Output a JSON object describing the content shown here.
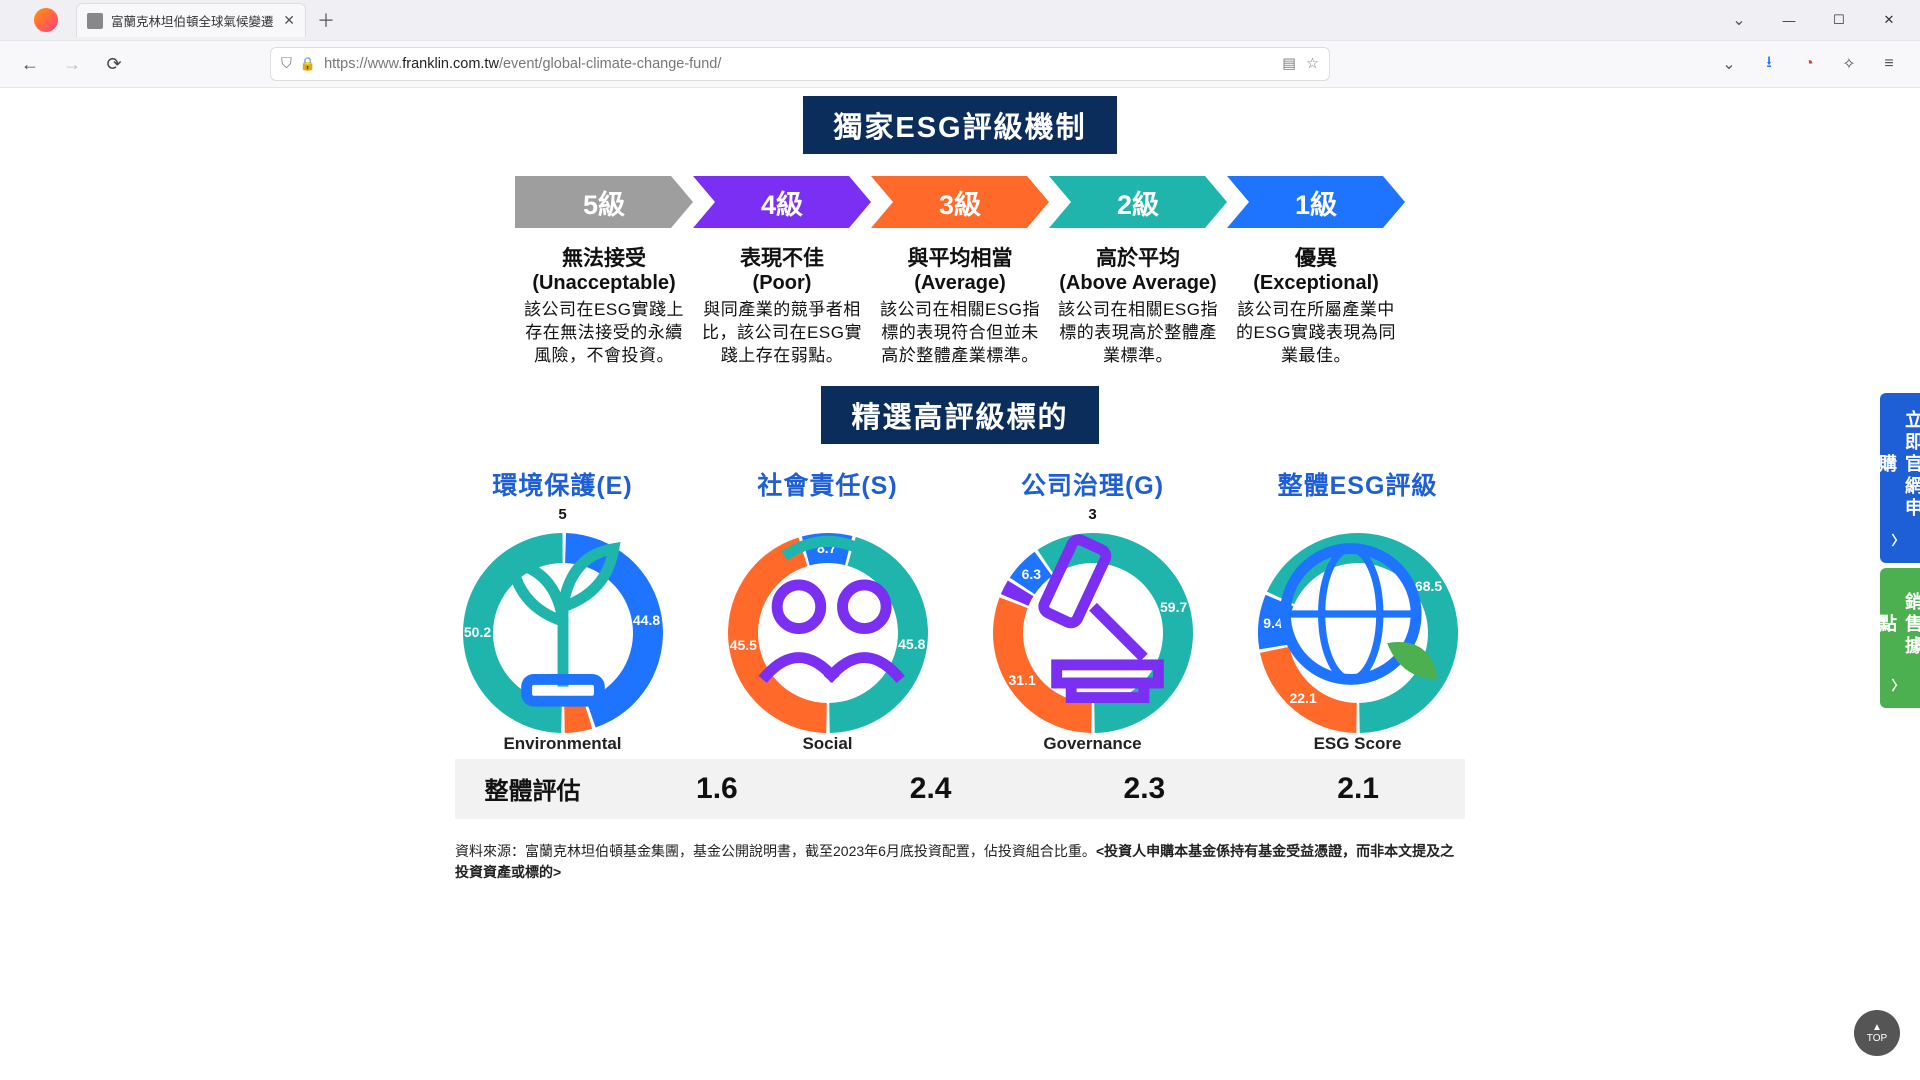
{
  "browser": {
    "tab_title": "富蘭克林坦伯頓全球氣候變遷",
    "url_prefix": "https://www.",
    "url_domain": "franklin.com.tw",
    "url_path": "/event/global-climate-change-fund/"
  },
  "banner1": "獨家ESG評級機制",
  "banner2": "精選高評級標的",
  "arrow_colors": [
    "#9e9e9e",
    "#7b2ff2",
    "#ff6a2b",
    "#1fb5ad",
    "#1e74ff"
  ],
  "levels": [
    {
      "grade": "5級",
      "title": "無法接受",
      "en": "(Unacceptable)",
      "desc": "該公司在ESG實踐上存在無法接受的永續風險，不會投資。"
    },
    {
      "grade": "4級",
      "title": "表現不佳",
      "en": "(Poor)",
      "desc": "與同產業的競爭者相比，該公司在ESG實踐上存在弱點。"
    },
    {
      "grade": "3級",
      "title": "與平均相當",
      "en": "(Average)",
      "desc": "該公司在相關ESG指標的表現符合但並未高於整體產業標準。"
    },
    {
      "grade": "2級",
      "title": "高於平均",
      "en": "(Above Average)",
      "desc": "該公司在相關ESG指標的表現高於整體產業標準。"
    },
    {
      "grade": "1級",
      "title": "優異",
      "en": "(Exceptional)",
      "desc": "該公司在所屬產業中的ESG實踐表現為同業最佳。"
    }
  ],
  "esg": [
    {
      "title": "環境保護(E)",
      "center": "Environmental",
      "top_label": "5",
      "segments": [
        {
          "value": 50.2,
          "color": "#1fb5ad",
          "label": "50.2"
        },
        {
          "value": 44.8,
          "color": "#1e74ff",
          "label": "44.8"
        },
        {
          "value": 5.0,
          "color": "#ff6a2b",
          "label": ""
        }
      ],
      "icon": "plant"
    },
    {
      "title": "社會責任(S)",
      "center": "Social",
      "top_label": "",
      "segments": [
        {
          "value": 45.5,
          "color": "#ff6a2b",
          "label": "45.5"
        },
        {
          "value": 8.7,
          "color": "#1e74ff",
          "label": "8.7"
        },
        {
          "value": 45.8,
          "color": "#1fb5ad",
          "label": "45.8"
        }
      ],
      "icon": "people"
    },
    {
      "title": "公司治理(G)",
      "center": "Governance",
      "top_label": "3",
      "segments": [
        {
          "value": 31.1,
          "color": "#ff6a2b",
          "label": "31.1"
        },
        {
          "value": 3.0,
          "color": "#7b2ff2",
          "label": ""
        },
        {
          "value": 6.3,
          "color": "#1e74ff",
          "label": "6.3"
        },
        {
          "value": 59.7,
          "color": "#1fb5ad",
          "label": "59.7"
        }
      ],
      "icon": "gavel"
    },
    {
      "title": "整體ESG評級",
      "center": "ESG Score",
      "top_label": "",
      "segments": [
        {
          "value": 22.1,
          "color": "#ff6a2b",
          "label": "22.1"
        },
        {
          "value": 9.4,
          "color": "#1e74ff",
          "label": "9.4"
        },
        {
          "value": 68.5,
          "color": "#1fb5ad",
          "label": "68.5"
        }
      ],
      "icon": "globe"
    }
  ],
  "score_label": "整體評估",
  "scores": [
    "1.6",
    "2.4",
    "2.3",
    "2.1"
  ],
  "footnote_a": "資料來源：富蘭克林坦伯頓基金集團，基金公開說明書，截至2023年6月底投資配置，佔投資組合比重。",
  "footnote_b": "<投資人申購本基金係持有基金受益憑證，而非本文提及之投資資產或標的>",
  "side_a": "立即官網申購",
  "side_b": "銷售據點",
  "top_btn": "TOP",
  "donut": {
    "outer_r": 100,
    "inner_r": 70,
    "gap_deg": 2
  }
}
